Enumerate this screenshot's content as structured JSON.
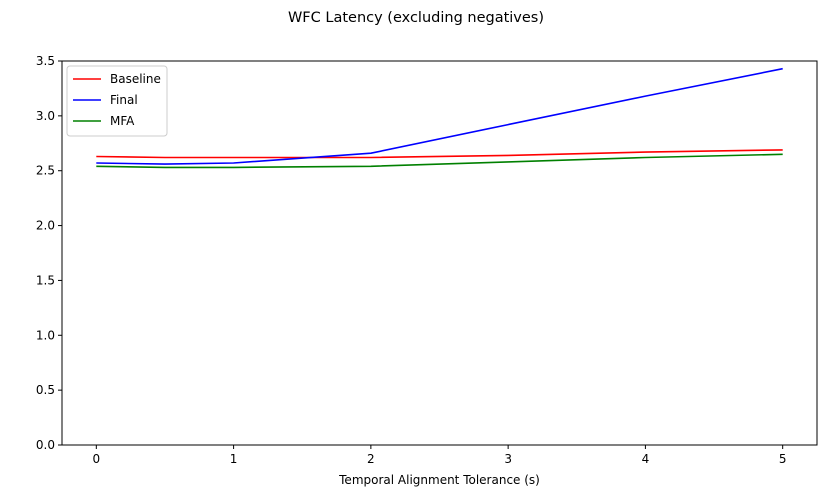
{
  "chart_data": {
    "type": "line",
    "title": "WFC Latency (excluding negatives)",
    "xlabel": "Temporal Alignment Tolerance (s)",
    "ylabel": "",
    "xlim": [
      -0.25,
      5.25
    ],
    "ylim": [
      0,
      3.5
    ],
    "xticks": [
      "0",
      "1",
      "2",
      "3",
      "4",
      "5"
    ],
    "yticks": [
      "0.0",
      "0.5",
      "1.0",
      "1.5",
      "2.0",
      "2.5",
      "3.0",
      "3.5"
    ],
    "x": [
      0,
      0.5,
      1,
      2,
      3,
      4,
      5
    ],
    "series": [
      {
        "name": "Baseline",
        "color": "#ff0000",
        "values": [
          2.63,
          2.62,
          2.62,
          2.62,
          2.64,
          2.67,
          2.69
        ]
      },
      {
        "name": "Final",
        "color": "#0000ff",
        "values": [
          2.57,
          2.56,
          2.57,
          2.66,
          2.92,
          3.18,
          3.43
        ]
      },
      {
        "name": "MFA",
        "color": "#008000",
        "values": [
          2.54,
          2.53,
          2.53,
          2.54,
          2.58,
          2.62,
          2.65
        ]
      }
    ],
    "legend": "top-left",
    "grid": false
  }
}
